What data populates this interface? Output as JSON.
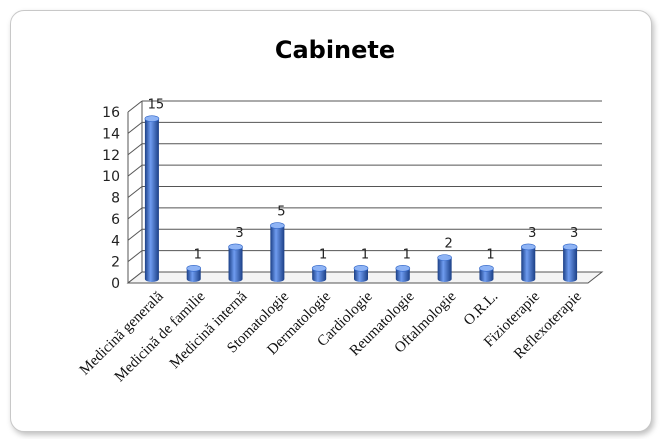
{
  "chart_data": {
    "type": "bar",
    "title": "Cabinete",
    "xlabel": "",
    "ylabel": "",
    "ylim": [
      0,
      16
    ],
    "yticks": [
      0,
      2,
      4,
      6,
      8,
      10,
      12,
      14,
      16
    ],
    "grid": true,
    "legend": "none",
    "bar_color": "#2f64c6",
    "bar_color_dark": "#1b3f86",
    "bar_color_light": "#6f9cf0",
    "categories": [
      "Medicină generală",
      "Medicină de familie",
      "Medicină internă",
      "Stomatologie",
      "Dermatologie",
      "Cardiologie",
      "Reumatologie",
      "Oftalmologie",
      "O.R.L.",
      "Fizioterapie",
      "Reflexoterapie"
    ],
    "values": [
      15,
      1,
      3,
      5,
      1,
      1,
      1,
      2,
      1,
      3,
      3
    ],
    "data_labels": [
      "15",
      "1",
      "3",
      "5",
      "1",
      "1",
      "1",
      "2",
      "1",
      "3",
      "3"
    ]
  }
}
